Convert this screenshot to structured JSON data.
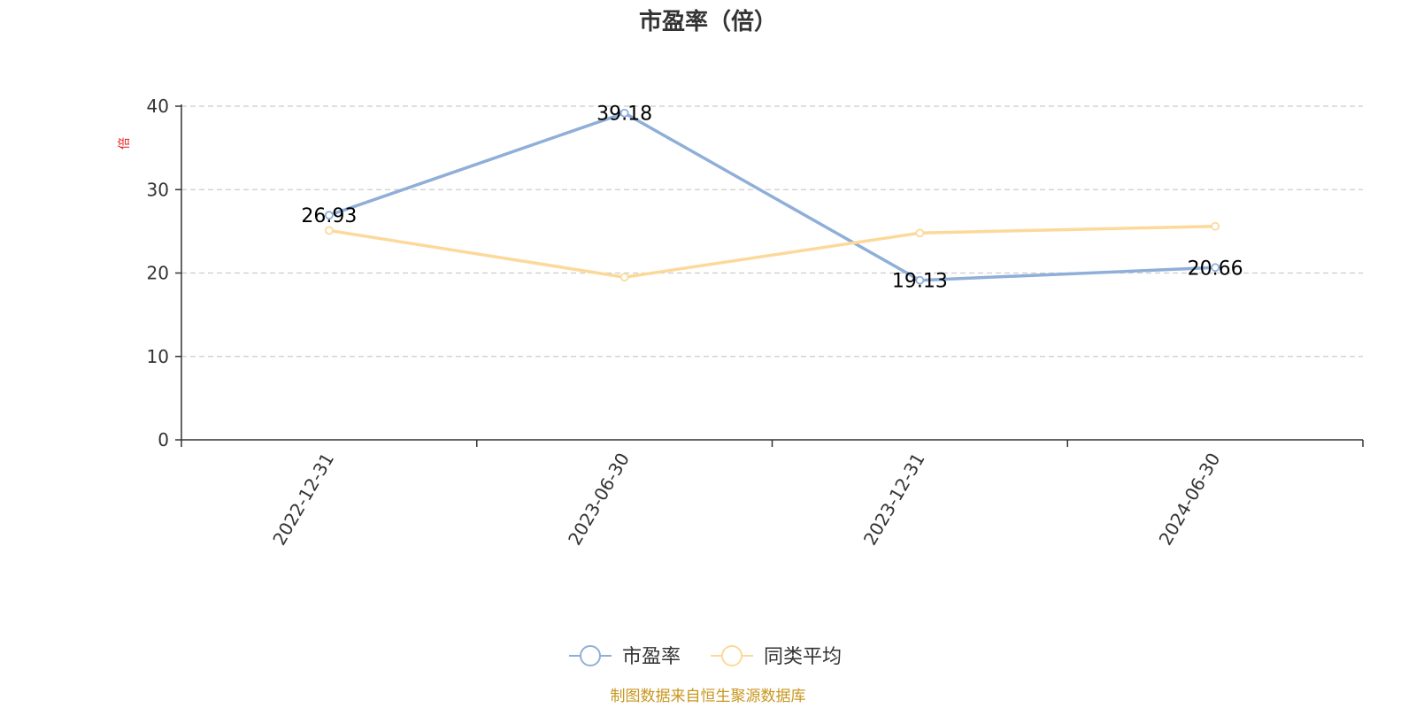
{
  "chart_data": {
    "type": "line",
    "title": "市盈率（倍）",
    "ylabel": "倍",
    "categories": [
      "2022-12-31",
      "2023-06-30",
      "2023-12-31",
      "2024-06-30"
    ],
    "ylim": [
      0,
      40
    ],
    "yticks": [
      0,
      10,
      20,
      30,
      40
    ],
    "grid": true,
    "legend_position": "bottom",
    "series": [
      {
        "name": "市盈率",
        "values": [
          26.93,
          39.18,
          19.13,
          20.66
        ],
        "color": "#8fafd8",
        "show_labels": true
      },
      {
        "name": "同类平均",
        "values": [
          25.1,
          19.5,
          24.8,
          25.6
        ],
        "color": "#fcd99a",
        "show_labels": false
      }
    ]
  },
  "source_note": "制图数据来自恒生聚源数据库"
}
